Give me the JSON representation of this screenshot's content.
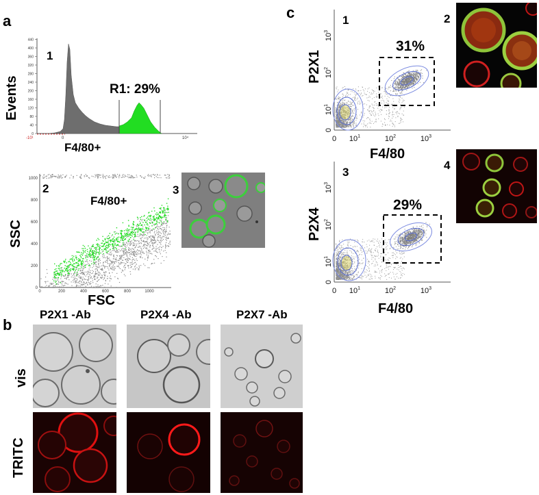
{
  "panel_a": {
    "letter": "a",
    "histogram": {
      "number": "1",
      "ylabel": "Events",
      "xlabel": "F4/80+",
      "gate_label": "R1: 29%",
      "ytick_labels": [
        "0",
        "40",
        "80",
        "120",
        "160",
        "200",
        "240",
        "280",
        "320",
        "360",
        "400",
        "440"
      ]
    },
    "scatter": {
      "number": "2",
      "ylabel": "SSC",
      "xlabel": "FSC",
      "population_label": "F4/80+",
      "tick_labels": [
        "0",
        "200",
        "400",
        "600",
        "800",
        "1000"
      ]
    },
    "image": {
      "number": "3"
    }
  },
  "panel_b": {
    "letter": "b",
    "columns": [
      "P2X1 -Ab",
      "P2X4 -Ab",
      "P2X7 -Ab"
    ],
    "rows": [
      "vis",
      "TRITC"
    ]
  },
  "panel_c": {
    "letter": "c",
    "plot_top": {
      "number": "1",
      "ylabel": "P2X1",
      "xlabel": "F4/80",
      "gate": "31%"
    },
    "image_top": {
      "number": "2"
    },
    "plot_bottom": {
      "number": "3",
      "ylabel": "P2X4",
      "xlabel": "F4/80",
      "gate": "29%"
    },
    "image_bottom": {
      "number": "4"
    },
    "axis_ticks": {
      "zero": "0",
      "t1": "10",
      "t2": "10",
      "t3": "10",
      "e1": "1",
      "e2": "2",
      "e3": "3"
    }
  },
  "colors": {
    "histogram_gray": "#6e6e6e",
    "gated_green": "#22dd22",
    "scatter_gray": "#8a8a8a",
    "contour_blue": "#5b6fd6",
    "tritc_red": "#e01010"
  }
}
